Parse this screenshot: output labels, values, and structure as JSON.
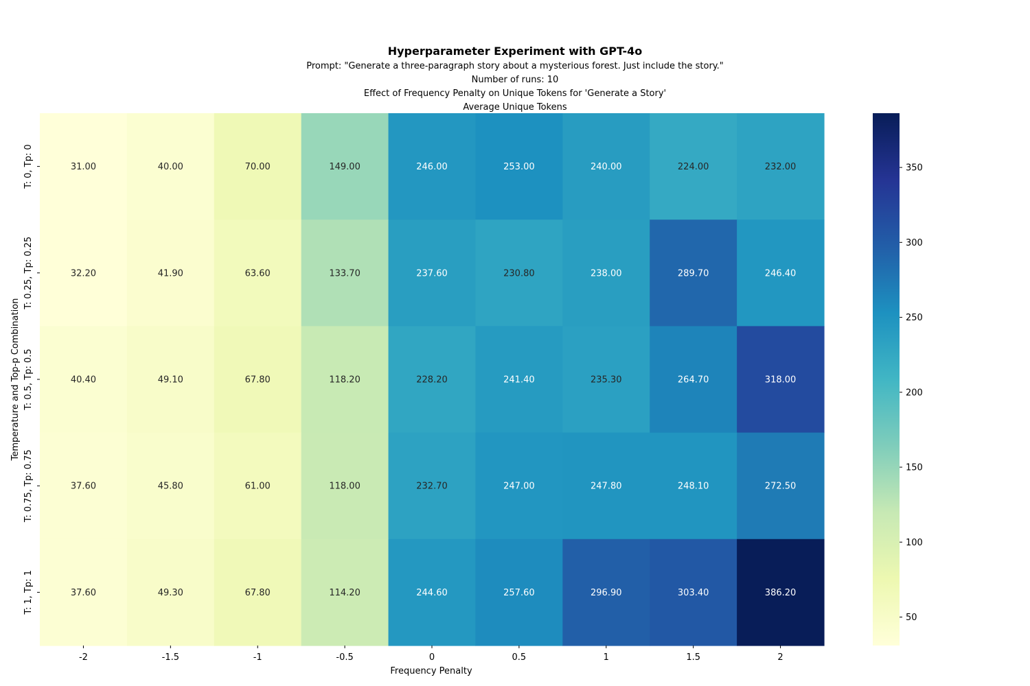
{
  "chart_data": {
    "type": "heatmap",
    "title": "Hyperparameter Experiment with GPT-4o",
    "subtitles": [
      "Prompt: \"Generate a three-paragraph story about a mysterious forest. Just include the story.\"",
      "Number of runs: 10",
      "Effect of Frequency Penalty on Unique Tokens for 'Generate a Story'",
      "Average Unique Tokens"
    ],
    "xlabel": "Frequency Penalty",
    "ylabel": "Temperature and Top-p Combination",
    "x_categories": [
      "-2",
      "-1.5",
      "-1",
      "-0.5",
      "0",
      "0.5",
      "1",
      "1.5",
      "2"
    ],
    "y_categories": [
      "T: 0, Tp: 0",
      "T: 0.25, Tp: 0.25",
      "T: 0.5, Tp: 0.5",
      "T: 0.75, Tp: 0.75",
      "T: 1, Tp: 1"
    ],
    "values": [
      [
        31.0,
        40.0,
        70.0,
        149.0,
        246.0,
        253.0,
        240.0,
        224.0,
        232.0
      ],
      [
        32.2,
        41.9,
        63.6,
        133.7,
        237.6,
        230.8,
        238.0,
        289.7,
        246.4
      ],
      [
        40.4,
        49.1,
        67.8,
        118.2,
        228.2,
        241.4,
        235.3,
        264.7,
        318.0
      ],
      [
        37.6,
        45.8,
        61.0,
        118.0,
        232.7,
        247.0,
        247.8,
        248.1,
        272.5
      ],
      [
        37.6,
        49.3,
        67.8,
        114.2,
        244.6,
        257.6,
        296.9,
        303.4,
        386.2
      ]
    ],
    "value_format": "2 decimals",
    "colormap": "YlGnBu",
    "colorbar": {
      "min": 31.0,
      "max": 386.2,
      "ticks": [
        50,
        100,
        150,
        200,
        250,
        300,
        350
      ]
    },
    "grid": false,
    "legend": "colorbar-right"
  }
}
